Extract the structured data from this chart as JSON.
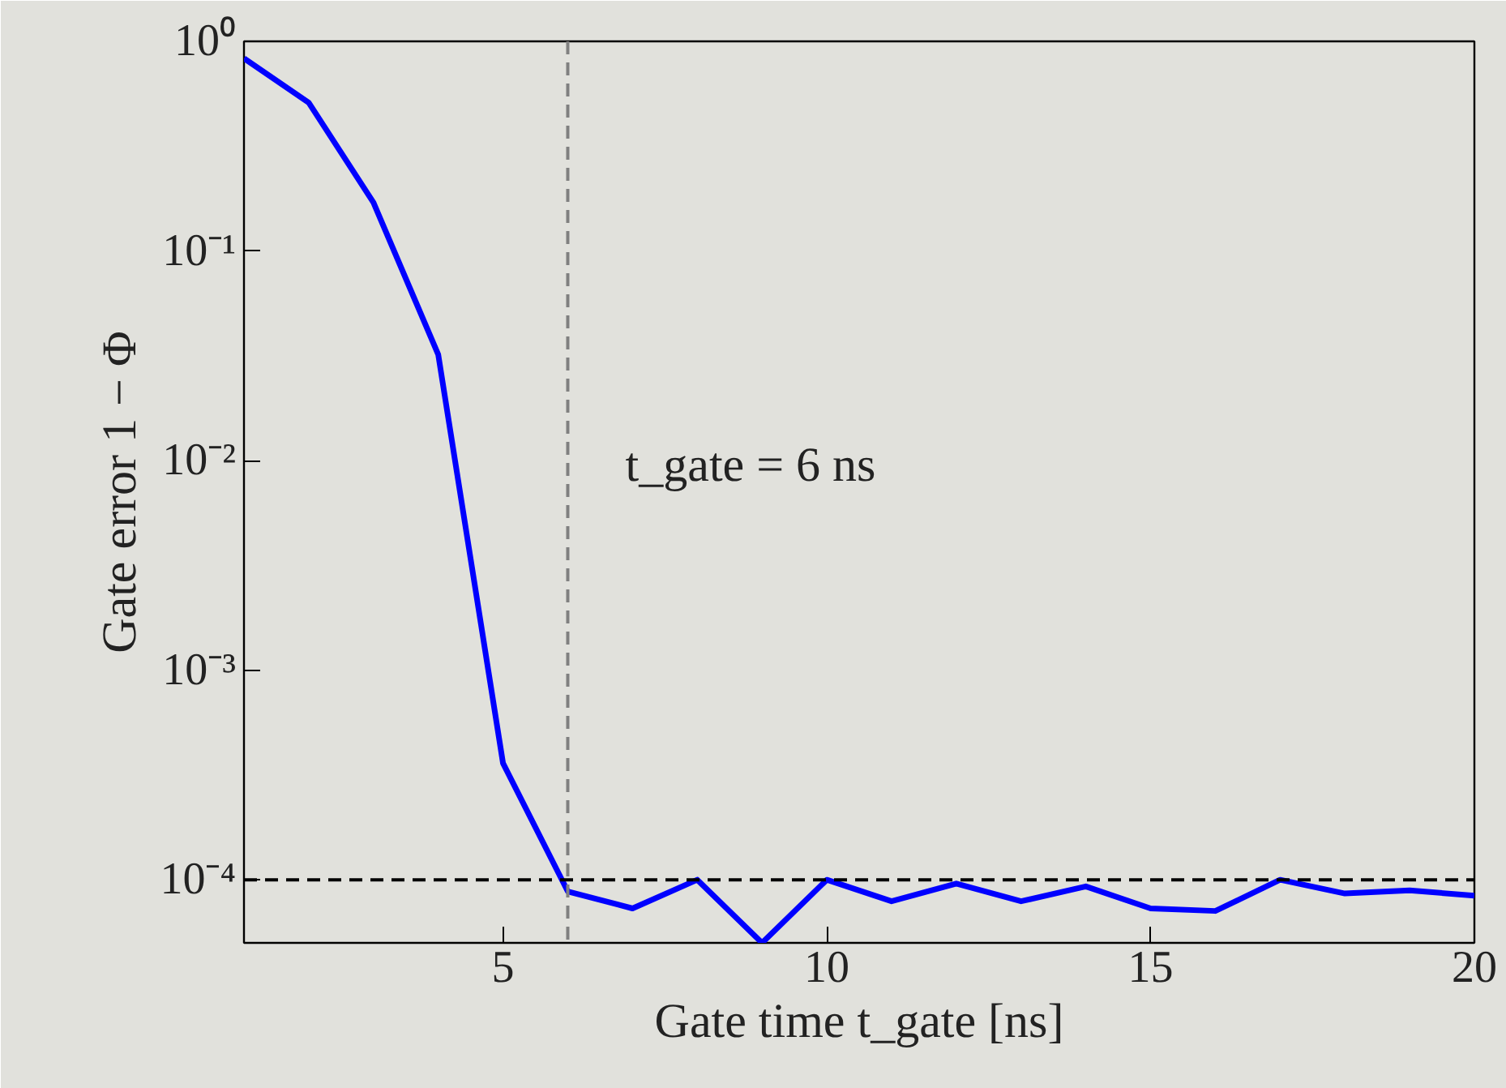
{
  "chart_data": {
    "type": "line",
    "xlabel": "Gate time t_gate [ns]",
    "ylabel": "Gate error 1 − Φ",
    "x": [
      1,
      2,
      3,
      4,
      5,
      6,
      7,
      8,
      9,
      10,
      11,
      12,
      13,
      14,
      15,
      16,
      17,
      18,
      19,
      20
    ],
    "series": [
      {
        "color": "#0000ff",
        "values": [
          0.83,
          0.51,
          0.17,
          0.032,
          0.00036,
          8.8e-05,
          7.3e-05,
          0.0001,
          5e-05,
          0.0001,
          7.9e-05,
          9.6e-05,
          7.9e-05,
          9.3e-05,
          7.3e-05,
          7.1e-05,
          0.0001,
          8.6e-05,
          8.9e-05,
          8.4e-05
        ]
      }
    ],
    "log": "y",
    "xlim": [
      1,
      20
    ],
    "ylim": [
      5e-05,
      1
    ],
    "xticks": [
      5,
      10,
      15,
      20
    ],
    "yticks": [
      {
        "value": 0.0001,
        "label": "10⁻⁴"
      },
      {
        "value": 0.001,
        "label": "10⁻³"
      },
      {
        "value": 0.01,
        "label": "10⁻²"
      },
      {
        "value": 0.1,
        "label": "10⁻¹"
      },
      {
        "value": 1,
        "label": "10⁰"
      }
    ],
    "ref_lines": [
      {
        "axis": "y",
        "value": 0.0001,
        "color": "#000000",
        "line_style": "dashed"
      },
      {
        "axis": "x",
        "value": 6,
        "color": "#808080",
        "line_style": "dashed"
      }
    ],
    "annotations": [
      "t_gate = 6 ns"
    ],
    "grid": false,
    "line_style": "solid",
    "marker": "none"
  }
}
